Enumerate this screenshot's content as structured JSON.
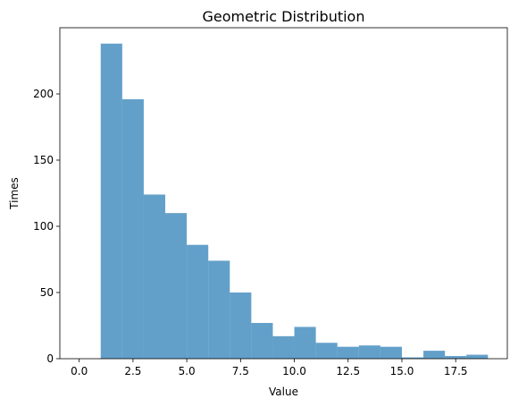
{
  "chart_data": {
    "type": "bar",
    "title": "Geometric Distribution",
    "xlabel": "Value",
    "ylabel": "Times",
    "xlim": [
      -0.9,
      19.9
    ],
    "ylim": [
      0,
      250
    ],
    "grid": false,
    "bar_color": "#1f77b4",
    "bar_opacity": 0.7,
    "x_ticks": [
      "0.0",
      "2.5",
      "5.0",
      "7.5",
      "10.0",
      "12.5",
      "15.0",
      "17.5"
    ],
    "y_ticks": [
      "0",
      "50",
      "100",
      "150",
      "200"
    ],
    "bins": [
      {
        "x0": 1,
        "x1": 2,
        "value": 238
      },
      {
        "x0": 2,
        "x1": 3,
        "value": 196
      },
      {
        "x0": 3,
        "x1": 4,
        "value": 124
      },
      {
        "x0": 4,
        "x1": 5,
        "value": 110
      },
      {
        "x0": 5,
        "x1": 6,
        "value": 86
      },
      {
        "x0": 6,
        "x1": 7,
        "value": 74
      },
      {
        "x0": 7,
        "x1": 8,
        "value": 50
      },
      {
        "x0": 8,
        "x1": 9,
        "value": 27
      },
      {
        "x0": 9,
        "x1": 10,
        "value": 17
      },
      {
        "x0": 10,
        "x1": 11,
        "value": 24
      },
      {
        "x0": 11,
        "x1": 12,
        "value": 12
      },
      {
        "x0": 12,
        "x1": 13,
        "value": 9
      },
      {
        "x0": 13,
        "x1": 14,
        "value": 10
      },
      {
        "x0": 14,
        "x1": 15,
        "value": 9
      },
      {
        "x0": 15,
        "x1": 16,
        "value": 1
      },
      {
        "x0": 16,
        "x1": 17,
        "value": 6
      },
      {
        "x0": 17,
        "x1": 18,
        "value": 2
      },
      {
        "x0": 18,
        "x1": 19,
        "value": 3
      }
    ]
  }
}
